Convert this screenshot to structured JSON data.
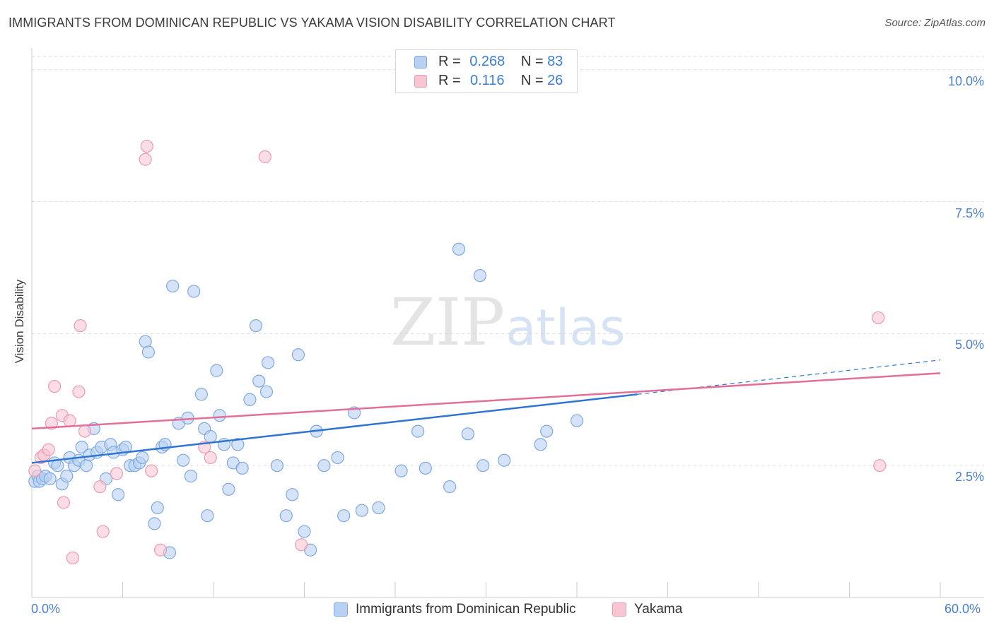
{
  "header": {
    "title": "IMMIGRANTS FROM DOMINICAN REPUBLIC VS YAKAMA VISION DISABILITY CORRELATION CHART",
    "source": "Source: ZipAtlas.com"
  },
  "watermark": {
    "part1": "ZIP",
    "part2": "atlas"
  },
  "colors": {
    "blue_fill": "#b7d1f3",
    "blue_stroke": "#7fa9e0",
    "blue_line": "#2f74d0",
    "pink_fill": "#f8c6d3",
    "pink_stroke": "#ec9ab1",
    "pink_line": "#e36e97",
    "grid": "#dcdcdc",
    "tick_label": "#4a7fd4"
  },
  "legend_top": {
    "rows": [
      {
        "r_label": "R =",
        "r_value": "0.268",
        "n_label": "N =",
        "n_value": "83"
      },
      {
        "r_label": "R =",
        "r_value": "0.116",
        "n_label": "N =",
        "n_value": "26"
      }
    ]
  },
  "legend_bottom": {
    "items": [
      "Immigrants from Dominican Republic",
      "Yakama"
    ]
  },
  "chart_data": {
    "type": "scatter",
    "ylabel": "Vision Disability",
    "xlim": [
      0,
      60
    ],
    "ylim": [
      0,
      10.25
    ],
    "x_ticks": [
      {
        "value": 0,
        "label": "0.0%"
      },
      {
        "value": 60,
        "label": "60.0%"
      }
    ],
    "y_ticks": [
      {
        "value": 2.5,
        "label": "2.5%"
      },
      {
        "value": 5.0,
        "label": "5.0%"
      },
      {
        "value": 7.5,
        "label": "7.5%"
      },
      {
        "value": 10.0,
        "label": "10.0%"
      }
    ],
    "x_minor_ticks": [
      0,
      6,
      12,
      18,
      24,
      30,
      36,
      42,
      48,
      54,
      60
    ],
    "grid": "horizontal-dashed",
    "legend": "bottom-center",
    "series": [
      {
        "name": "Immigrants from Dominican Republic",
        "color": "#7fa9e0",
        "trend": {
          "x0": 0,
          "y0": 2.55,
          "x1": 40,
          "y1": 3.85,
          "dash_to_x": 60,
          "dash_to_y": 4.5
        },
        "points": [
          [
            0.2,
            2.2
          ],
          [
            0.4,
            2.3
          ],
          [
            0.5,
            2.2
          ],
          [
            0.7,
            2.25
          ],
          [
            0.9,
            2.3
          ],
          [
            1.2,
            2.25
          ],
          [
            1.5,
            2.55
          ],
          [
            1.7,
            2.5
          ],
          [
            2.0,
            2.15
          ],
          [
            2.3,
            2.3
          ],
          [
            2.5,
            2.65
          ],
          [
            2.8,
            2.5
          ],
          [
            3.1,
            2.6
          ],
          [
            3.3,
            2.85
          ],
          [
            3.6,
            2.5
          ],
          [
            3.8,
            2.7
          ],
          [
            4.1,
            3.2
          ],
          [
            4.3,
            2.75
          ],
          [
            4.6,
            2.85
          ],
          [
            4.9,
            2.25
          ],
          [
            5.2,
            2.9
          ],
          [
            5.4,
            2.75
          ],
          [
            5.7,
            1.95
          ],
          [
            6.0,
            2.8
          ],
          [
            6.2,
            2.85
          ],
          [
            6.5,
            2.5
          ],
          [
            6.8,
            2.5
          ],
          [
            7.1,
            2.55
          ],
          [
            7.3,
            2.65
          ],
          [
            7.5,
            4.85
          ],
          [
            7.7,
            4.65
          ],
          [
            8.1,
            1.4
          ],
          [
            8.3,
            1.7
          ],
          [
            8.6,
            2.85
          ],
          [
            8.8,
            2.9
          ],
          [
            9.1,
            0.85
          ],
          [
            9.3,
            5.9
          ],
          [
            9.7,
            3.3
          ],
          [
            10.0,
            2.6
          ],
          [
            10.3,
            3.4
          ],
          [
            10.5,
            2.3
          ],
          [
            10.7,
            5.8
          ],
          [
            11.2,
            3.85
          ],
          [
            11.4,
            3.2
          ],
          [
            11.8,
            3.05
          ],
          [
            11.6,
            1.55
          ],
          [
            12.2,
            4.3
          ],
          [
            12.4,
            3.45
          ],
          [
            12.7,
            2.9
          ],
          [
            13.0,
            2.05
          ],
          [
            13.3,
            2.55
          ],
          [
            13.6,
            2.9
          ],
          [
            13.9,
            2.45
          ],
          [
            14.4,
            3.75
          ],
          [
            14.8,
            5.15
          ],
          [
            15.0,
            4.1
          ],
          [
            15.5,
            3.9
          ],
          [
            15.6,
            4.45
          ],
          [
            16.2,
            2.5
          ],
          [
            16.8,
            1.55
          ],
          [
            17.2,
            1.95
          ],
          [
            17.6,
            4.6
          ],
          [
            18.0,
            1.25
          ],
          [
            18.4,
            0.9
          ],
          [
            18.8,
            3.15
          ],
          [
            19.3,
            2.5
          ],
          [
            20.2,
            2.65
          ],
          [
            20.6,
            1.55
          ],
          [
            21.3,
            3.5
          ],
          [
            21.8,
            1.65
          ],
          [
            22.9,
            1.7
          ],
          [
            24.4,
            2.4
          ],
          [
            25.5,
            3.15
          ],
          [
            26.0,
            2.45
          ],
          [
            27.6,
            2.1
          ],
          [
            28.2,
            6.6
          ],
          [
            28.8,
            3.1
          ],
          [
            29.6,
            6.1
          ],
          [
            29.8,
            2.5
          ],
          [
            31.2,
            2.6
          ],
          [
            33.6,
            2.9
          ],
          [
            34.0,
            3.15
          ],
          [
            36.0,
            3.35
          ]
        ]
      },
      {
        "name": "Yakama",
        "color": "#ec9ab1",
        "trend": {
          "x0": 0,
          "y0": 3.2,
          "x1": 60,
          "y1": 4.25
        },
        "points": [
          [
            0.2,
            2.4
          ],
          [
            0.6,
            2.65
          ],
          [
            0.8,
            2.7
          ],
          [
            1.1,
            2.8
          ],
          [
            1.3,
            3.3
          ],
          [
            1.5,
            4.0
          ],
          [
            2.0,
            3.45
          ],
          [
            2.1,
            1.8
          ],
          [
            2.5,
            3.35
          ],
          [
            2.7,
            0.75
          ],
          [
            3.1,
            3.9
          ],
          [
            3.2,
            5.15
          ],
          [
            3.5,
            3.15
          ],
          [
            4.5,
            2.1
          ],
          [
            4.7,
            1.25
          ],
          [
            5.6,
            2.35
          ],
          [
            7.5,
            8.3
          ],
          [
            7.6,
            8.55
          ],
          [
            7.9,
            2.4
          ],
          [
            8.5,
            0.9
          ],
          [
            11.4,
            2.85
          ],
          [
            11.8,
            2.65
          ],
          [
            15.4,
            8.35
          ],
          [
            17.8,
            1.0
          ],
          [
            55.9,
            5.3
          ],
          [
            56.0,
            2.5
          ]
        ]
      }
    ]
  }
}
